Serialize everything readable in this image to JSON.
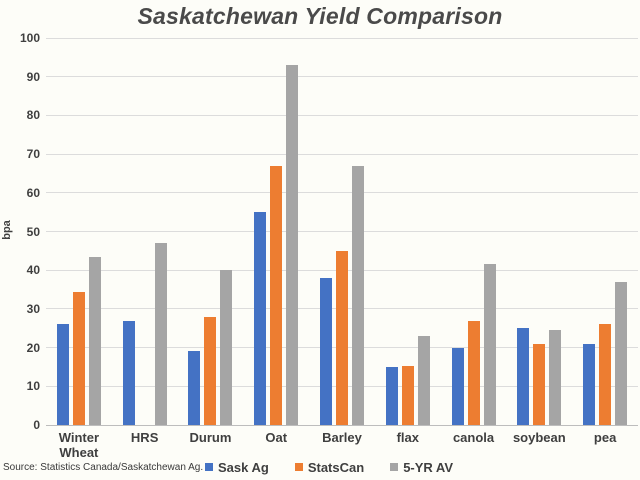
{
  "title": "Saskatchewan Yield Comparison",
  "source": "Source: Statistics Canada/Saskatchewan Ag.",
  "colors": {
    "background": "#fdfdf8",
    "gridline": "#dcdcdc",
    "axis_line": "#bdbdbd",
    "text": "#3f3f3f",
    "title_text": "#4a4a4a",
    "sask_ag_blue": "#4472C4",
    "statscan_orange": "#ED7D31",
    "five_yr_gray": "#A5A5A5"
  },
  "chart_data": {
    "type": "bar",
    "title": "Saskatchewan Yield Comparison",
    "categories": [
      "Winter Wheat",
      "HRS",
      "Durum",
      "Oat",
      "Barley",
      "flax",
      "canola",
      "soybean",
      "pea"
    ],
    "series": [
      {
        "name": "Sask Ag",
        "color": "#4472C4",
        "values": [
          26,
          27,
          19,
          55,
          38,
          15,
          20,
          25,
          21
        ]
      },
      {
        "name": "StatsCan",
        "color": "#ED7D31",
        "values": [
          34.5,
          null,
          28,
          67,
          45,
          15.3,
          27,
          21,
          26
        ]
      },
      {
        "name": "5-YR AV",
        "color": "#A5A5A5",
        "values": [
          43.5,
          47,
          40,
          93,
          67,
          23,
          41.5,
          24.5,
          37
        ]
      }
    ],
    "xlabel": "",
    "ylabel": "bpa",
    "ylim": [
      0,
      100
    ],
    "ytick_step": 10,
    "grid": true,
    "legend_position": "bottom"
  }
}
